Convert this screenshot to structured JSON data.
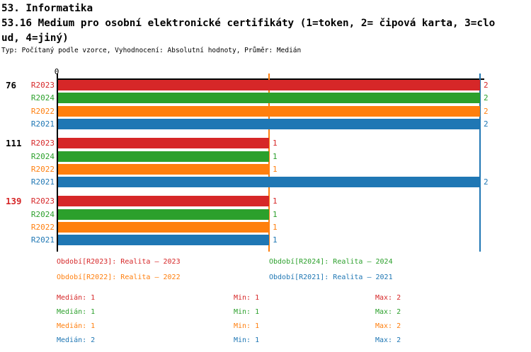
{
  "header": {
    "line1": "53. Informatika",
    "line2": "53.16 Medium pro osobní elektronické certifikáty (1=token, 2= čipová karta, 3=clo",
    "line3": "ud, 4=jiný)",
    "meta": "Typ: Počítaný podle vzorce, Vyhodnocení: Absolutní hodnoty, Průměr: Medián"
  },
  "colors": {
    "R2023": "#d62728",
    "R2024": "#2ca02c",
    "R2022": "#ff7f0e",
    "R2021": "#1f77b4",
    "axis": "#000000",
    "highlight": "#d62728"
  },
  "chart_data": {
    "type": "bar",
    "orientation": "horizontal",
    "title": "53.16 Medium pro osobní elektronické certifikáty (1=token, 2= čipová karta, 3=cloud, 4=jiný)",
    "xlim": [
      0,
      2
    ],
    "tick_label": "0",
    "series_order": [
      "R2023",
      "R2024",
      "R2022",
      "R2021"
    ],
    "groups": [
      {
        "label": "76",
        "highlighted": false,
        "values": {
          "R2023": 2,
          "R2024": 2,
          "R2022": 2,
          "R2021": 2
        }
      },
      {
        "label": "111",
        "highlighted": false,
        "values": {
          "R2023": 1,
          "R2024": 1,
          "R2022": 1,
          "R2021": 2
        }
      },
      {
        "label": "139",
        "highlighted": true,
        "values": {
          "R2023": 1,
          "R2024": 1,
          "R2022": 1,
          "R2021": 1
        }
      }
    ],
    "reference_lines": [
      {
        "series": "R2022",
        "value": 1
      },
      {
        "series": "R2021",
        "value": 2
      }
    ]
  },
  "legend": {
    "items": [
      {
        "series": "R2023",
        "text": "Období[R2023]: Realita – 2023"
      },
      {
        "series": "R2024",
        "text": "Období[R2024]: Realita – 2024"
      },
      {
        "series": "R2022",
        "text": "Období[R2022]: Realita – 2022"
      },
      {
        "series": "R2021",
        "text": "Období[R2021]: Realita – 2021"
      }
    ]
  },
  "stats": {
    "rows": [
      {
        "series": "R2023",
        "median": "Medián: 1",
        "min": "Min: 1",
        "max": "Max: 2"
      },
      {
        "series": "R2024",
        "median": "Medián: 1",
        "min": "Min: 1",
        "max": "Max: 2"
      },
      {
        "series": "R2022",
        "median": "Medián: 1",
        "min": "Min: 1",
        "max": "Max: 2"
      },
      {
        "series": "R2021",
        "median": "Medián: 2",
        "min": "Min: 1",
        "max": "Max: 2"
      }
    ]
  }
}
